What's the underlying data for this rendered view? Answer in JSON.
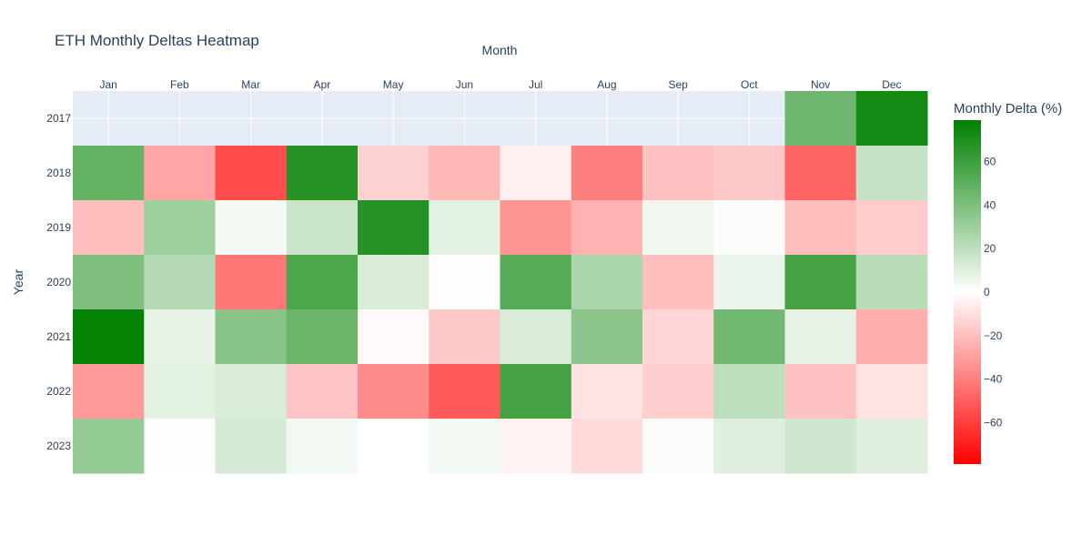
{
  "chart_data": {
    "type": "heatmap",
    "title": "ETH Monthly Deltas Heatmap",
    "xlabel": "Month",
    "ylabel": "Year",
    "x_axis_position": "top",
    "x": [
      "Jan",
      "Feb",
      "Mar",
      "Apr",
      "May",
      "Jun",
      "Jul",
      "Aug",
      "Sep",
      "Oct",
      "Nov",
      "Dec"
    ],
    "y": [
      "2017",
      "2018",
      "2019",
      "2020",
      "2021",
      "2022",
      "2023"
    ],
    "z": [
      [
        null,
        null,
        null,
        null,
        null,
        null,
        null,
        null,
        null,
        null,
        45,
        73
      ],
      [
        48,
        -28,
        -55,
        67,
        -14,
        -22,
        -5,
        -40,
        -19,
        -17,
        -48,
        18
      ],
      [
        -20,
        30,
        3,
        16,
        68,
        9,
        -33,
        -24,
        5,
        2,
        -20,
        -16
      ],
      [
        40,
        23,
        -42,
        55,
        12,
        -1,
        52,
        26,
        -20,
        6,
        58,
        22
      ],
      [
        78,
        7,
        37,
        46,
        -2,
        -17,
        12,
        36,
        -13,
        44,
        8,
        -25
      ],
      [
        -31,
        9,
        12,
        -18,
        -36,
        -51,
        58,
        -9,
        -15,
        20,
        -19,
        -9
      ],
      [
        33,
        1,
        13,
        4,
        0,
        4,
        -4,
        -11,
        2,
        10,
        15,
        10
      ]
    ],
    "zmin": -79,
    "zmax": 79,
    "colorscale": [
      "#ff0000",
      "#ffffff",
      "#008000"
    ],
    "colorbar": {
      "title": "Monthly Delta (%)",
      "tick_values": [
        -60,
        -40,
        -20,
        0,
        20,
        40,
        60
      ],
      "tick_labels": [
        "−60",
        "−40",
        "−20",
        "0",
        "20",
        "40",
        "60"
      ]
    },
    "grid": true,
    "plot_background": "#e5ecf6"
  }
}
